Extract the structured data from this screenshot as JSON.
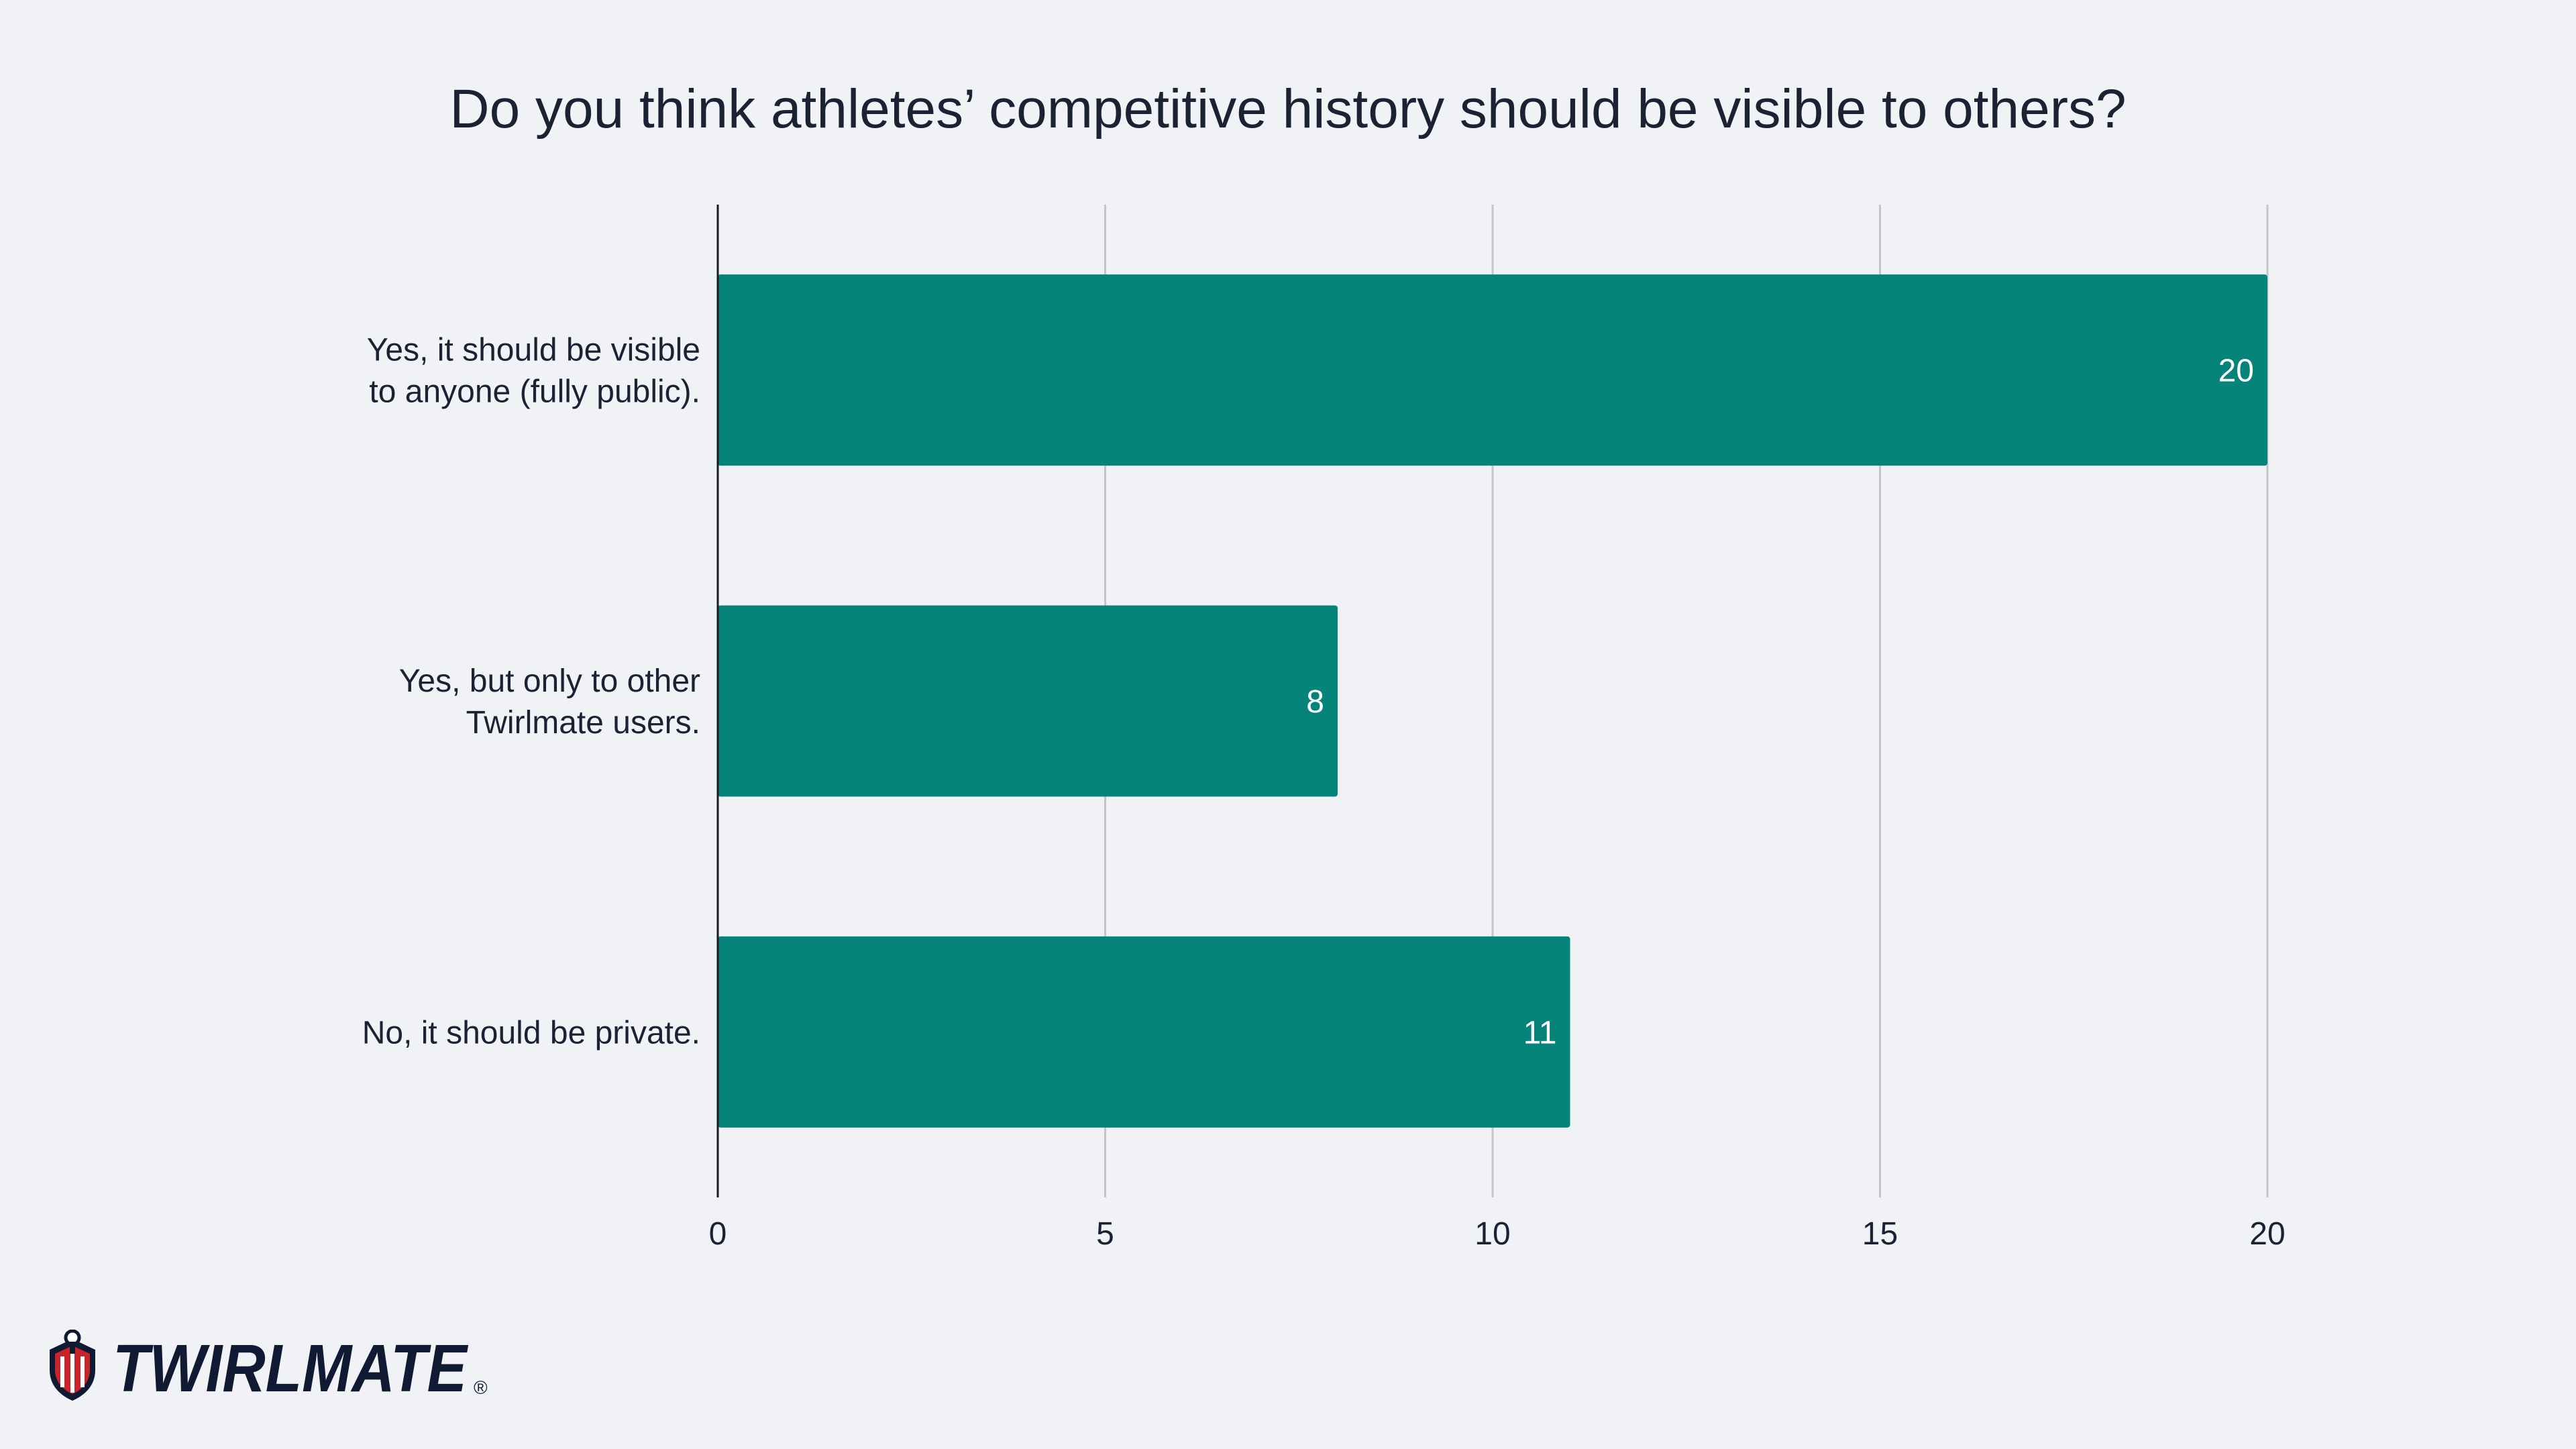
{
  "chart_data": {
    "type": "bar",
    "orientation": "horizontal",
    "title": "Do you think athletes’ competitive history should be visible to others?",
    "categories": [
      "Yes, it should be visible to anyone (fully public).",
      "Yes, but only to other Twirlmate users.",
      "No, it should be private."
    ],
    "category_lines": [
      [
        "Yes, it should be visible",
        "to anyone (fully public)."
      ],
      [
        "Yes, but only to other",
        "Twirlmate users."
      ],
      [
        "No, it should be private."
      ]
    ],
    "values": [
      20,
      8,
      11
    ],
    "xlim": [
      0,
      20
    ],
    "x_ticks": [
      0,
      5,
      10,
      15,
      20
    ],
    "grid": true,
    "legend": "none",
    "data_labels": true
  },
  "colors": {
    "bar": "#06847a",
    "background": "#f0f2f6",
    "grid": "#c4c6c9",
    "axis": "#1a1a1a",
    "text": "#1a2234",
    "data_label": "#ffffff",
    "brand_navy": "#101a33",
    "brand_red": "#c8242c"
  },
  "brand": {
    "logo_text": "TWIRLMATE",
    "registered_mark": "®",
    "logo_icon": "shield-baton-icon"
  }
}
